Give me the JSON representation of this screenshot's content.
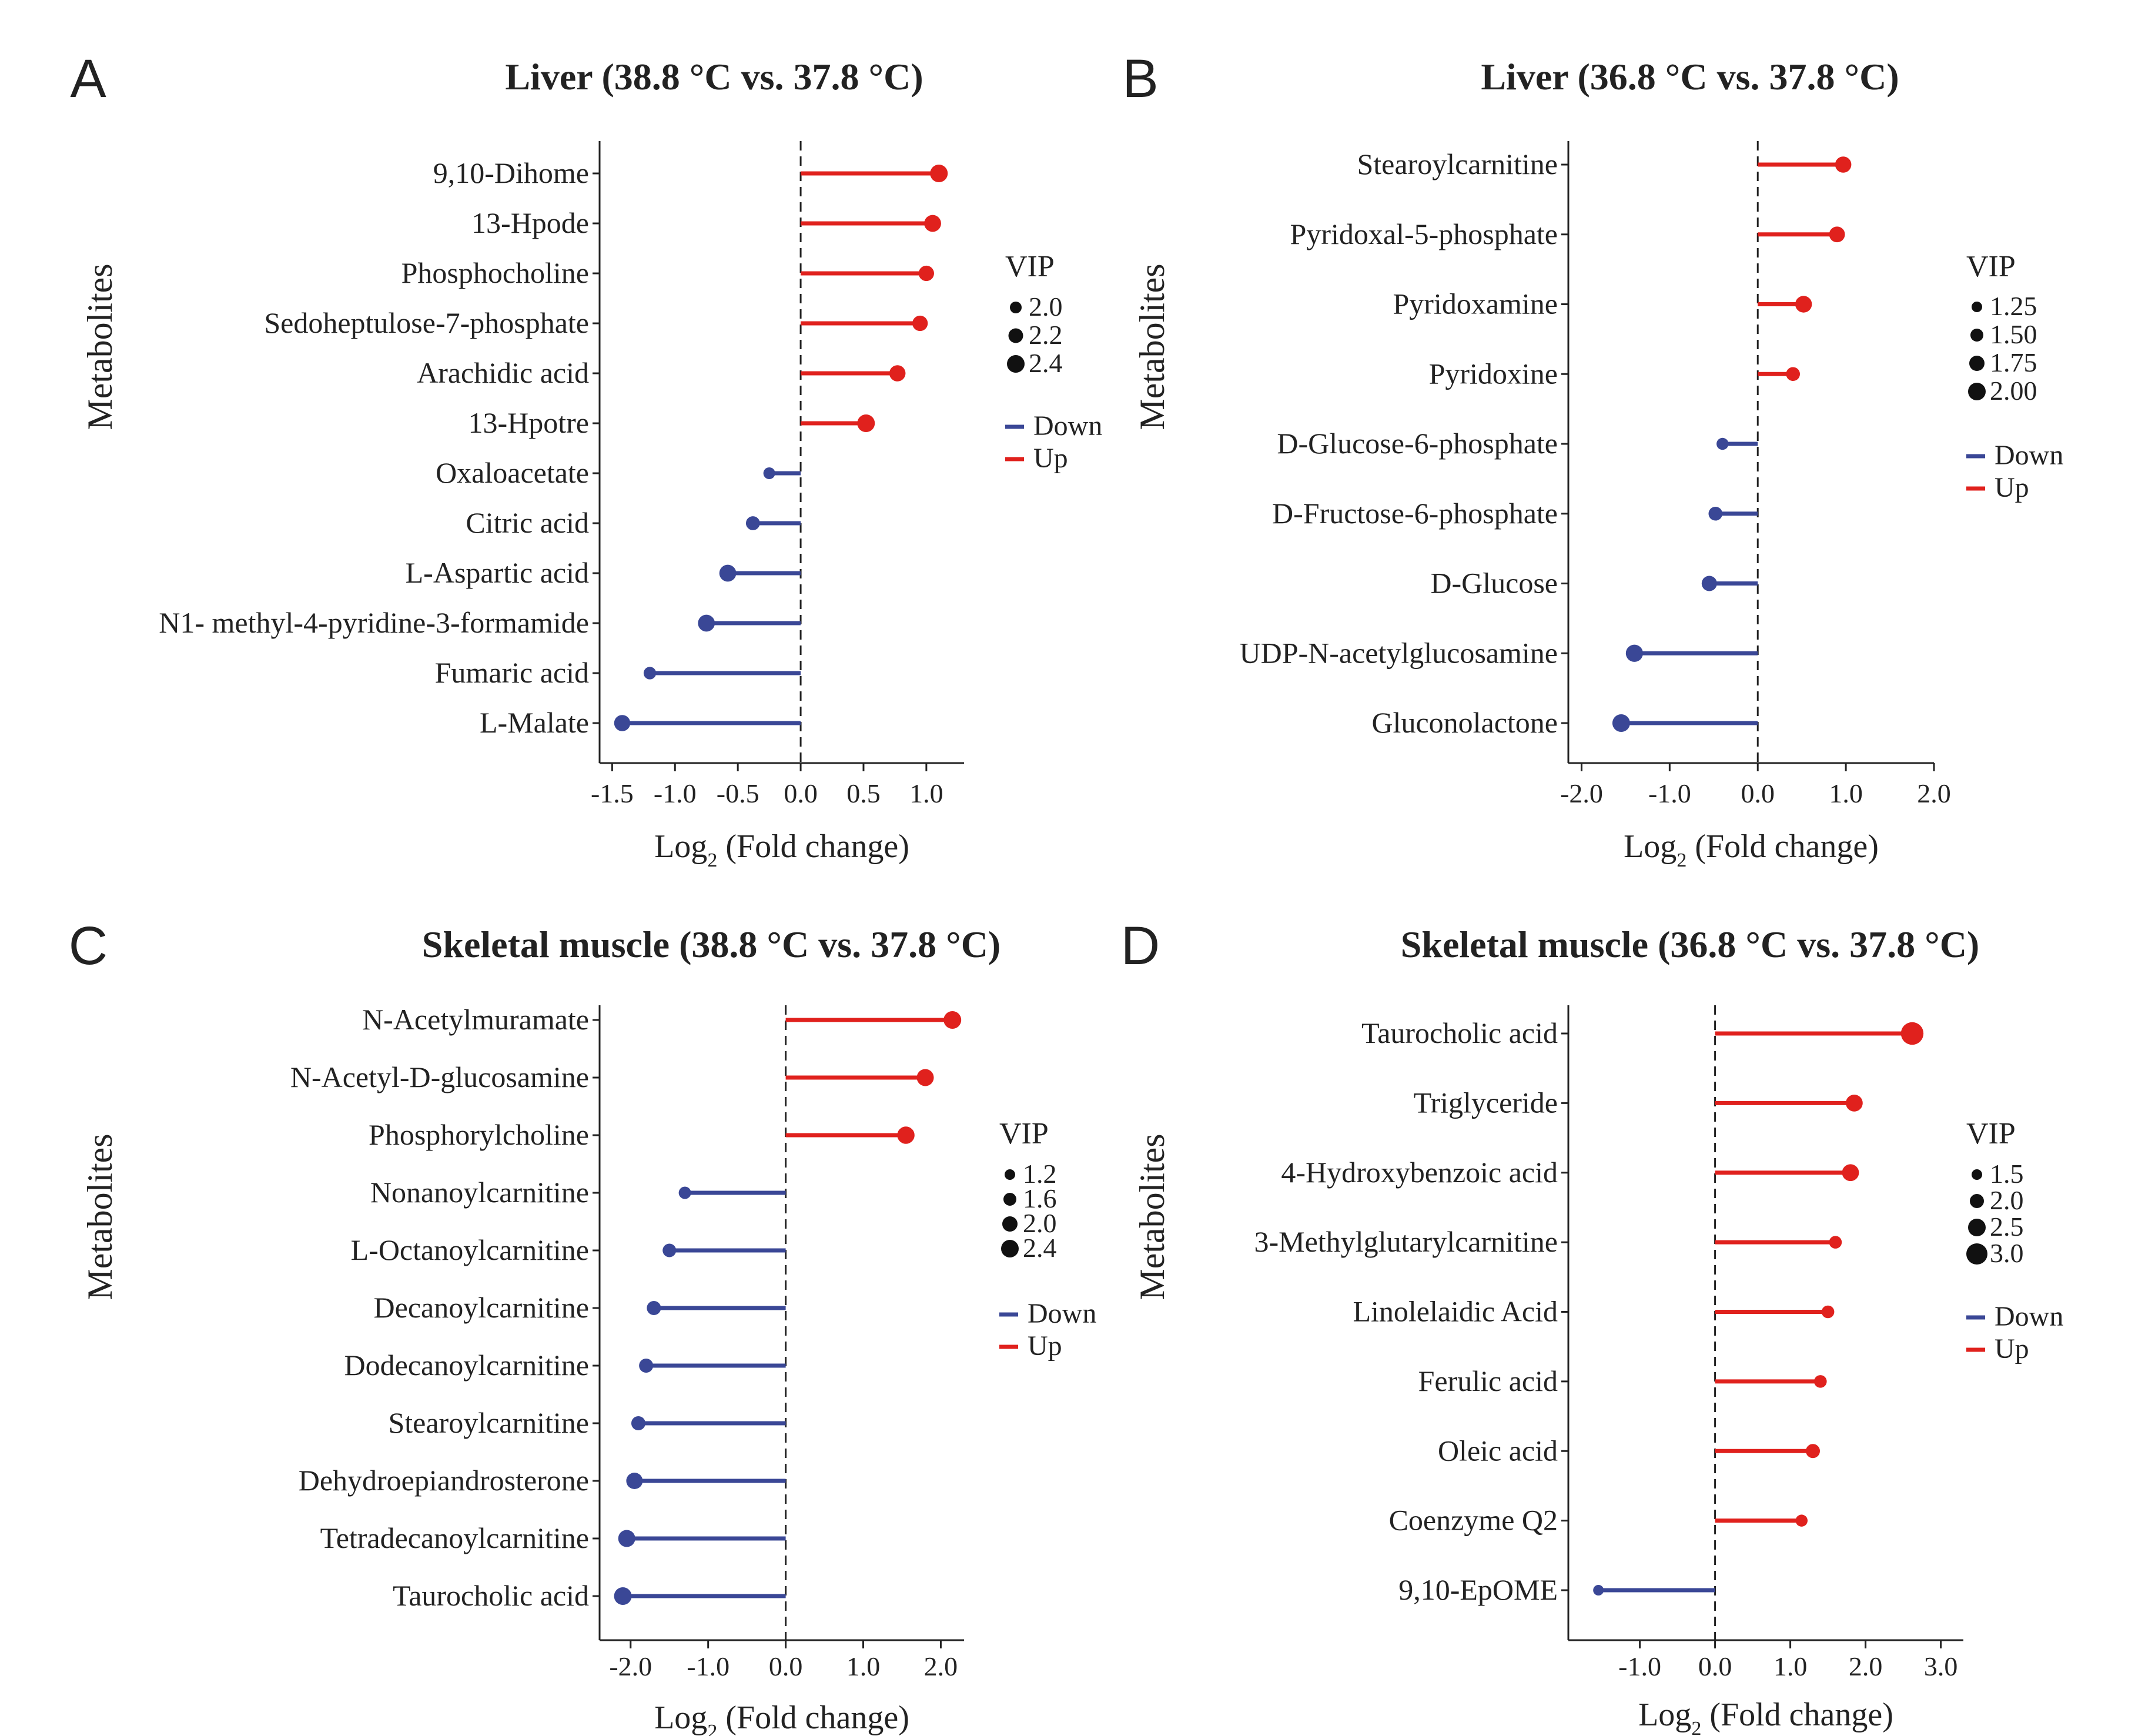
{
  "colors": {
    "up": "#e0211d",
    "down": "#3a4796",
    "axis": "#222222",
    "text": "#222222"
  },
  "chart_data": [
    {
      "panel_label": "A",
      "type": "lollipop",
      "title": "Liver (38.8 °C vs. 37.8 °C)",
      "ylabel": "Metabolites",
      "xlabel_main": "Log",
      "xlabel_sub": "2",
      "xlabel_rest": " (Fold change)",
      "xlim": [
        -1.6,
        1.3
      ],
      "xticks": [
        -1.5,
        -1.0,
        -0.5,
        0.0,
        0.5,
        1.0
      ],
      "xtick_labels": [
        "-1.5",
        "-1.0",
        "-0.5",
        "0.0",
        "0.5",
        "1.0"
      ],
      "categories": [
        "9,10-Dihome",
        "13-Hpode",
        "Phosphocholine",
        "Sedoheptulose-7-phosphate",
        "Arachidic acid",
        "13-Hpotre",
        "Oxaloacetate",
        "Citric acid",
        "L-Aspartic acid",
        "N1- methyl-4-pyridine-3-formamide",
        "Fumaric acid",
        "L-Malate"
      ],
      "values": [
        1.1,
        1.05,
        1.0,
        0.95,
        0.77,
        0.52,
        -0.25,
        -0.38,
        -0.58,
        -0.75,
        -1.2,
        -1.42
      ],
      "vip": [
        2.4,
        2.35,
        2.25,
        2.25,
        2.3,
        2.4,
        2.0,
        2.15,
        2.35,
        2.35,
        2.05,
        2.3
      ],
      "legend_size_title": "VIP",
      "legend_size_values": [
        2.0,
        2.2,
        2.4
      ],
      "legend_size_labels": [
        "2.0",
        "2.2",
        "2.4"
      ],
      "legend_color_labels": [
        "Down",
        "Up"
      ]
    },
    {
      "panel_label": "B",
      "type": "lollipop",
      "title": "Liver (36.8 °C vs. 37.8 °C)",
      "ylabel": "Metabolites",
      "xlabel_main": "Log",
      "xlabel_sub": "2",
      "xlabel_rest": " (Fold change)",
      "xlim": [
        -2.15,
        2.0
      ],
      "xticks": [
        -2.0,
        -1.0,
        0.0,
        1.0,
        2.0
      ],
      "xtick_labels": [
        "-2.0",
        "-1.0",
        "0.0",
        "1.0",
        "2.0"
      ],
      "categories": [
        "Stearoylcarnitine",
        "Pyridoxal-5-phosphate",
        "Pyridoxamine",
        "Pyridoxine",
        "D-Glucose-6-phosphate",
        "D-Fructose-6-phosphate",
        "D-Glucose",
        "UDP-N-acetylglucosamine",
        "Gluconolactone"
      ],
      "values": [
        0.97,
        0.9,
        0.52,
        0.4,
        -0.4,
        -0.48,
        -0.55,
        -1.4,
        -1.55
      ],
      "vip": [
        1.85,
        1.8,
        1.9,
        1.6,
        1.4,
        1.6,
        1.75,
        1.95,
        2.0
      ],
      "legend_size_title": "VIP",
      "legend_size_values": [
        1.25,
        1.5,
        1.75,
        2.0
      ],
      "legend_size_labels": [
        "1.25",
        "1.50",
        "1.75",
        "2.00"
      ],
      "legend_color_labels": [
        "Down",
        "Up"
      ]
    },
    {
      "panel_label": "C",
      "type": "lollipop",
      "title": "Skeletal muscle (38.8 °C vs. 37.8 °C)",
      "ylabel": "Metabolites",
      "xlabel_main": "Log",
      "xlabel_sub": "2",
      "xlabel_rest": " (Fold change)",
      "xlim": [
        -2.4,
        2.3
      ],
      "xticks": [
        -2.0,
        -1.0,
        0.0,
        1.0,
        2.0
      ],
      "xtick_labels": [
        "-2.0",
        "-1.0",
        "0.0",
        "1.0",
        "2.0"
      ],
      "categories": [
        "N-Acetylmuramate",
        "N-Acetyl-D-glucosamine",
        "Phosphorylcholine",
        "Nonanoylcarnitine",
        "L-Octanoylcarnitine",
        "Decanoylcarnitine",
        "Dodecanoylcarnitine",
        "Stearoylcarnitine",
        "Dehydroepiandrosterone",
        "Tetradecanoylcarnitine",
        "Taurocholic acid"
      ],
      "values": [
        2.15,
        1.8,
        1.55,
        -1.3,
        -1.5,
        -1.7,
        -1.8,
        -1.9,
        -1.95,
        -2.05,
        -2.1
      ],
      "vip": [
        2.4,
        2.3,
        2.35,
        1.5,
        1.7,
        1.8,
        1.8,
        1.8,
        2.2,
        2.3,
        2.4
      ],
      "legend_size_title": "VIP",
      "legend_size_values": [
        1.2,
        1.6,
        2.0,
        2.4
      ],
      "legend_size_labels": [
        "1.2",
        "1.6",
        "2.0",
        "2.4"
      ],
      "legend_color_labels": [
        "Down",
        "Up"
      ]
    },
    {
      "panel_label": "D",
      "type": "lollipop",
      "title": "Skeletal muscle (36.8 °C vs. 37.8 °C)",
      "ylabel": "Metabolites",
      "xlabel_main": "Log",
      "xlabel_sub": "2",
      "xlabel_rest": " (Fold change)",
      "xlim": [
        -1.95,
        3.3
      ],
      "xticks": [
        -1.0,
        0.0,
        1.0,
        2.0,
        3.0
      ],
      "xtick_labels": [
        "-1.0",
        "0.0",
        "1.0",
        "2.0",
        "3.0"
      ],
      "categories": [
        "Taurocholic acid",
        "Triglyceride",
        "4-Hydroxybenzoic acid",
        "3-Methylglutarylcarnitine",
        "Linolelaidic Acid",
        "Ferulic acid",
        "Oleic acid",
        "Coenzyme Q2",
        "9,10-EpOME"
      ],
      "values": [
        2.62,
        1.85,
        1.8,
        1.6,
        1.5,
        1.4,
        1.3,
        1.15,
        -1.55
      ],
      "vip": [
        3.2,
        2.4,
        2.4,
        1.8,
        1.8,
        1.8,
        2.0,
        1.7,
        1.5
      ],
      "legend_size_title": "VIP",
      "legend_size_values": [
        1.5,
        2.0,
        2.5,
        3.0
      ],
      "legend_size_labels": [
        "1.5",
        "2.0",
        "2.5",
        "3.0"
      ],
      "legend_color_labels": [
        "Down",
        "Up"
      ]
    }
  ]
}
